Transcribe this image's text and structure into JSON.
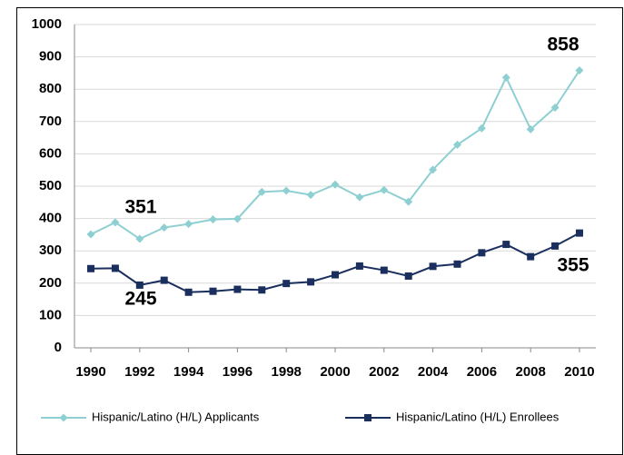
{
  "chart_data": {
    "type": "line",
    "x": [
      1990,
      1991,
      1992,
      1993,
      1994,
      1995,
      1996,
      1997,
      1998,
      1999,
      2000,
      2001,
      2002,
      2003,
      2004,
      2005,
      2006,
      2007,
      2008,
      2009,
      2010
    ],
    "series": [
      {
        "name": "Hispanic/Latino (H/L) Applicants",
        "color": "#8ecfd2",
        "marker": "diamond",
        "values": [
          351,
          388,
          337,
          372,
          383,
          397,
          399,
          482,
          486,
          473,
          505,
          466,
          488,
          452,
          551,
          628,
          679,
          836,
          676,
          743,
          858
        ]
      },
      {
        "name": "Hispanic/Latino (H/L) Enrollees",
        "color": "#1a2f5e",
        "marker": "square",
        "values": [
          245,
          246,
          194,
          209,
          172,
          175,
          181,
          179,
          199,
          204,
          226,
          253,
          240,
          222,
          252,
          259,
          294,
          320,
          282,
          315,
          355
        ]
      }
    ],
    "xlim": [
      1989.33,
      2010.67
    ],
    "xticks": [
      1990,
      1992,
      1994,
      1996,
      1998,
      2000,
      2002,
      2004,
      2006,
      2008,
      2010
    ],
    "ylim": [
      0,
      1000
    ],
    "yticks": [
      0,
      100,
      200,
      300,
      400,
      500,
      600,
      700,
      800,
      900,
      1000
    ],
    "grid": true,
    "legend": "bottom"
  }
}
